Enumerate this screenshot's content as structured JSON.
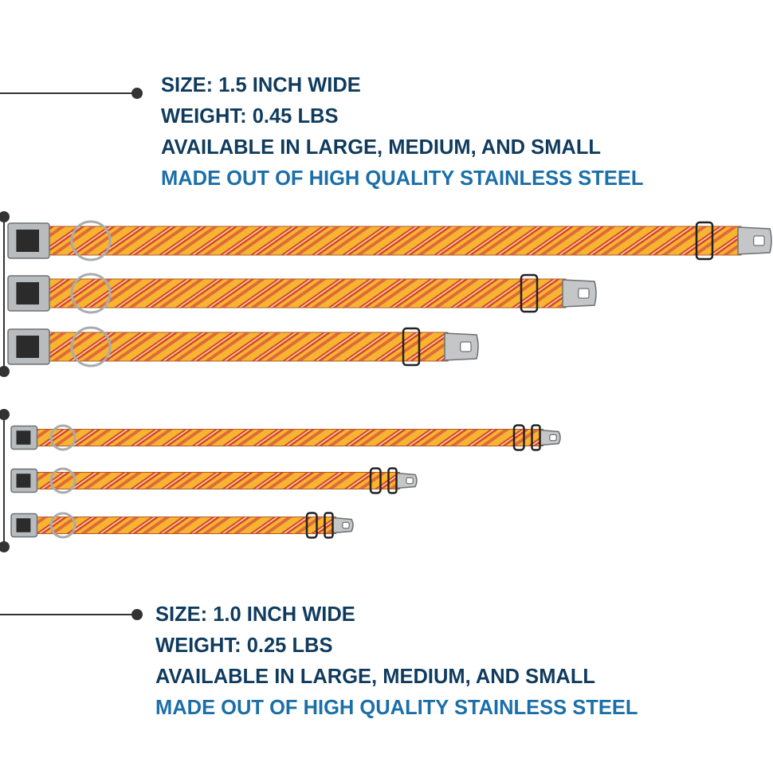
{
  "specs": [
    {
      "lines": [
        "SIZE: 1.5 INCH WIDE",
        "WEIGHT: 0.45 LBS",
        "AVAILABLE IN LARGE, MEDIUM, AND SMALL",
        "MADE OUT OF HIGH QUALITY STAINLESS STEEL"
      ]
    },
    {
      "lines": [
        "SIZE: 1.0 INCH WIDE",
        "WEIGHT: 0.25 LBS",
        "AVAILABLE IN LARGE, MEDIUM, AND SMALL",
        "MADE OUT OF HIGH QUALITY STAINLESS STEEL"
      ]
    }
  ]
}
